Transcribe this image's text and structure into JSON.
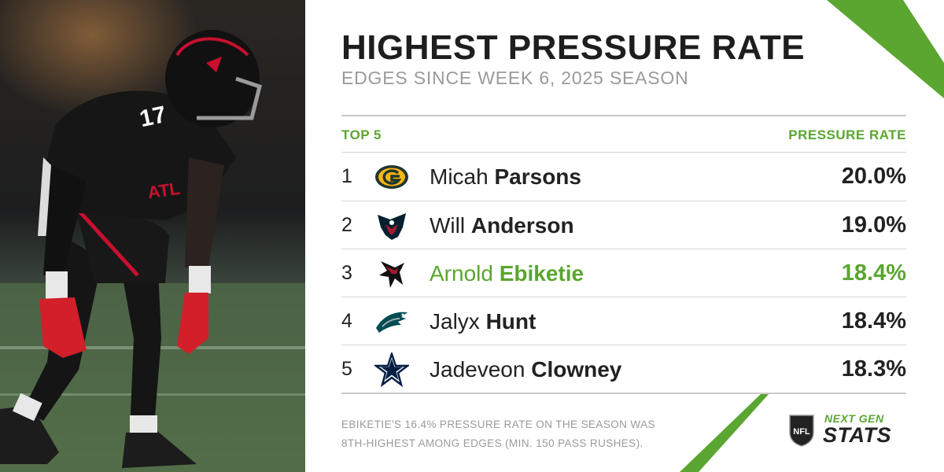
{
  "header": {
    "title": "HIGHEST PRESSURE RATE",
    "subtitle": "EDGES SINCE WEEK 6, 2025 SEASON"
  },
  "table": {
    "left_header": "TOP 5",
    "right_header": "PRESSURE RATE",
    "rows": [
      {
        "rank": "1",
        "first": "Micah",
        "last": "Parsons",
        "rate": "20.0%",
        "team_icon": "packers-logo-icon"
      },
      {
        "rank": "2",
        "first": "Will",
        "last": "Anderson",
        "rate": "19.0%",
        "team_icon": "texans-logo-icon"
      },
      {
        "rank": "3",
        "first": "Arnold",
        "last": "Ebiketie",
        "rate": "18.4%",
        "team_icon": "falcons-logo-icon",
        "highlight": true
      },
      {
        "rank": "4",
        "first": "Jalyx",
        "last": "Hunt",
        "rate": "18.4%",
        "team_icon": "eagles-logo-icon"
      },
      {
        "rank": "5",
        "first": "Jadeveon",
        "last": "Clowney",
        "rate": "18.3%",
        "team_icon": "cowboys-logo-icon"
      }
    ]
  },
  "footnote": {
    "line1": "EBIKETIE'S 16.4% PRESSURE RATE ON THE SEASON WAS",
    "line2": "8TH-HIGHEST AMONG EDGES (MIN. 150 PASS RUSHES)."
  },
  "brand": {
    "shield_text": "NFL",
    "line1": "NEXT GEN",
    "line2": "STATS"
  },
  "player_photo": {
    "jersey_number": "17",
    "jersey_text": "ATL"
  },
  "colors": {
    "accent_green": "#5aa630",
    "text_dark": "#222222",
    "text_gray": "#9a9a9a"
  }
}
